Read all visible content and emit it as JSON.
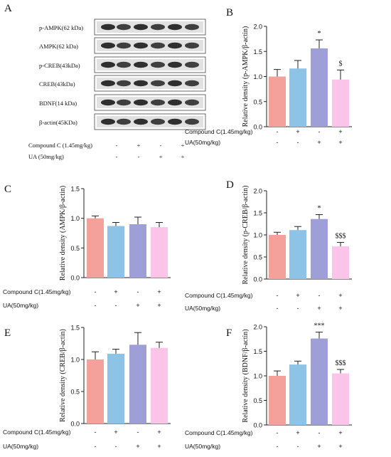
{
  "panel_letters": [
    "A",
    "B",
    "C",
    "D",
    "E",
    "F"
  ],
  "blot": {
    "bands": [
      "p-AMPK(62 kDa)",
      "AMPK(62 kDa)",
      "p-CREB(43kDa)",
      "CREB(43kDa)",
      "BDNF(14 kDa)",
      "β-actin(45KDa)"
    ],
    "treatment_rows": [
      {
        "label": "Compound C (1.45mg/kg)",
        "signs": [
          "-",
          "+",
          "-",
          "+"
        ]
      },
      {
        "label": "UA (50mg/kg)",
        "signs": [
          "-",
          "-",
          "+",
          "+"
        ]
      }
    ]
  },
  "colors": {
    "group1": "#f4a19b",
    "group2": "#8ec3e8",
    "group3": "#9e9fd6",
    "group4": "#fcc4e8",
    "axis": "#222222"
  },
  "treatment_row_labels": [
    "Compound C(1.45mg/kg)",
    "UA(50mg/kg)"
  ],
  "chart_data": [
    {
      "panel": "B",
      "type": "bar",
      "ylabel": "Relative density (p-AMPK/β-actin)",
      "ylim": [
        0,
        2.0
      ],
      "yticks": [
        "0.0",
        "0.5",
        "1.0",
        "1.5",
        "2.0"
      ],
      "values": [
        1.0,
        1.16,
        1.56,
        0.94
      ],
      "errors": [
        0.14,
        0.16,
        0.17,
        0.19
      ],
      "annotations": [
        "",
        "",
        "*",
        "$"
      ],
      "treatments": [
        [
          "-",
          "+",
          "-",
          "+"
        ],
        [
          "-",
          "-",
          "+",
          "+"
        ]
      ]
    },
    {
      "panel": "C",
      "type": "bar",
      "ylabel": "Relative density (AMPK/β-actin)",
      "ylim": [
        0,
        1.5
      ],
      "yticks": [
        "0.0",
        "0.5",
        "1.0",
        "1.5"
      ],
      "values": [
        1.0,
        0.87,
        0.9,
        0.85
      ],
      "errors": [
        0.04,
        0.06,
        0.12,
        0.08
      ],
      "annotations": [
        "",
        "",
        "",
        ""
      ],
      "treatments": [
        [
          "-",
          "+",
          "-",
          "+"
        ],
        [
          "-",
          "-",
          "+",
          "+"
        ]
      ]
    },
    {
      "panel": "D",
      "type": "bar",
      "ylabel": "Relative density (p-CREB/β-actin)",
      "ylim": [
        0,
        2.0
      ],
      "yticks": [
        "0.0",
        "0.5",
        "1.0",
        "1.5",
        "2.0"
      ],
      "values": [
        1.0,
        1.11,
        1.36,
        0.74
      ],
      "errors": [
        0.06,
        0.08,
        0.1,
        0.09
      ],
      "annotations": [
        "",
        "",
        "*",
        "$$$"
      ],
      "treatments": [
        [
          "-",
          "+",
          "-",
          "+"
        ],
        [
          "-",
          "-",
          "+",
          "+"
        ]
      ]
    },
    {
      "panel": "E",
      "type": "bar",
      "ylabel": "Relative density (CREB/β-actin)",
      "ylim": [
        0,
        1.5
      ],
      "yticks": [
        "0.0",
        "0.5",
        "1.0",
        "1.5"
      ],
      "values": [
        1.0,
        1.09,
        1.23,
        1.18
      ],
      "errors": [
        0.12,
        0.07,
        0.19,
        0.09
      ],
      "annotations": [
        "",
        "",
        "",
        ""
      ],
      "treatments": [
        [
          "-",
          "+",
          "-",
          "+"
        ],
        [
          "-",
          "-",
          "+",
          "+"
        ]
      ]
    },
    {
      "panel": "F",
      "type": "bar",
      "ylabel": "Relative density (BDNF/β-actin)",
      "ylim": [
        0,
        2.0
      ],
      "yticks": [
        "0.0",
        "0.5",
        "1.0",
        "1.5",
        "2.0"
      ],
      "values": [
        1.0,
        1.23,
        1.76,
        1.05
      ],
      "errors": [
        0.1,
        0.07,
        0.13,
        0.08
      ],
      "annotations": [
        "",
        "",
        "***",
        "$$$"
      ],
      "treatments": [
        [
          "-",
          "+",
          "-",
          "+"
        ],
        [
          "-",
          "-",
          "+",
          "+"
        ]
      ]
    }
  ]
}
